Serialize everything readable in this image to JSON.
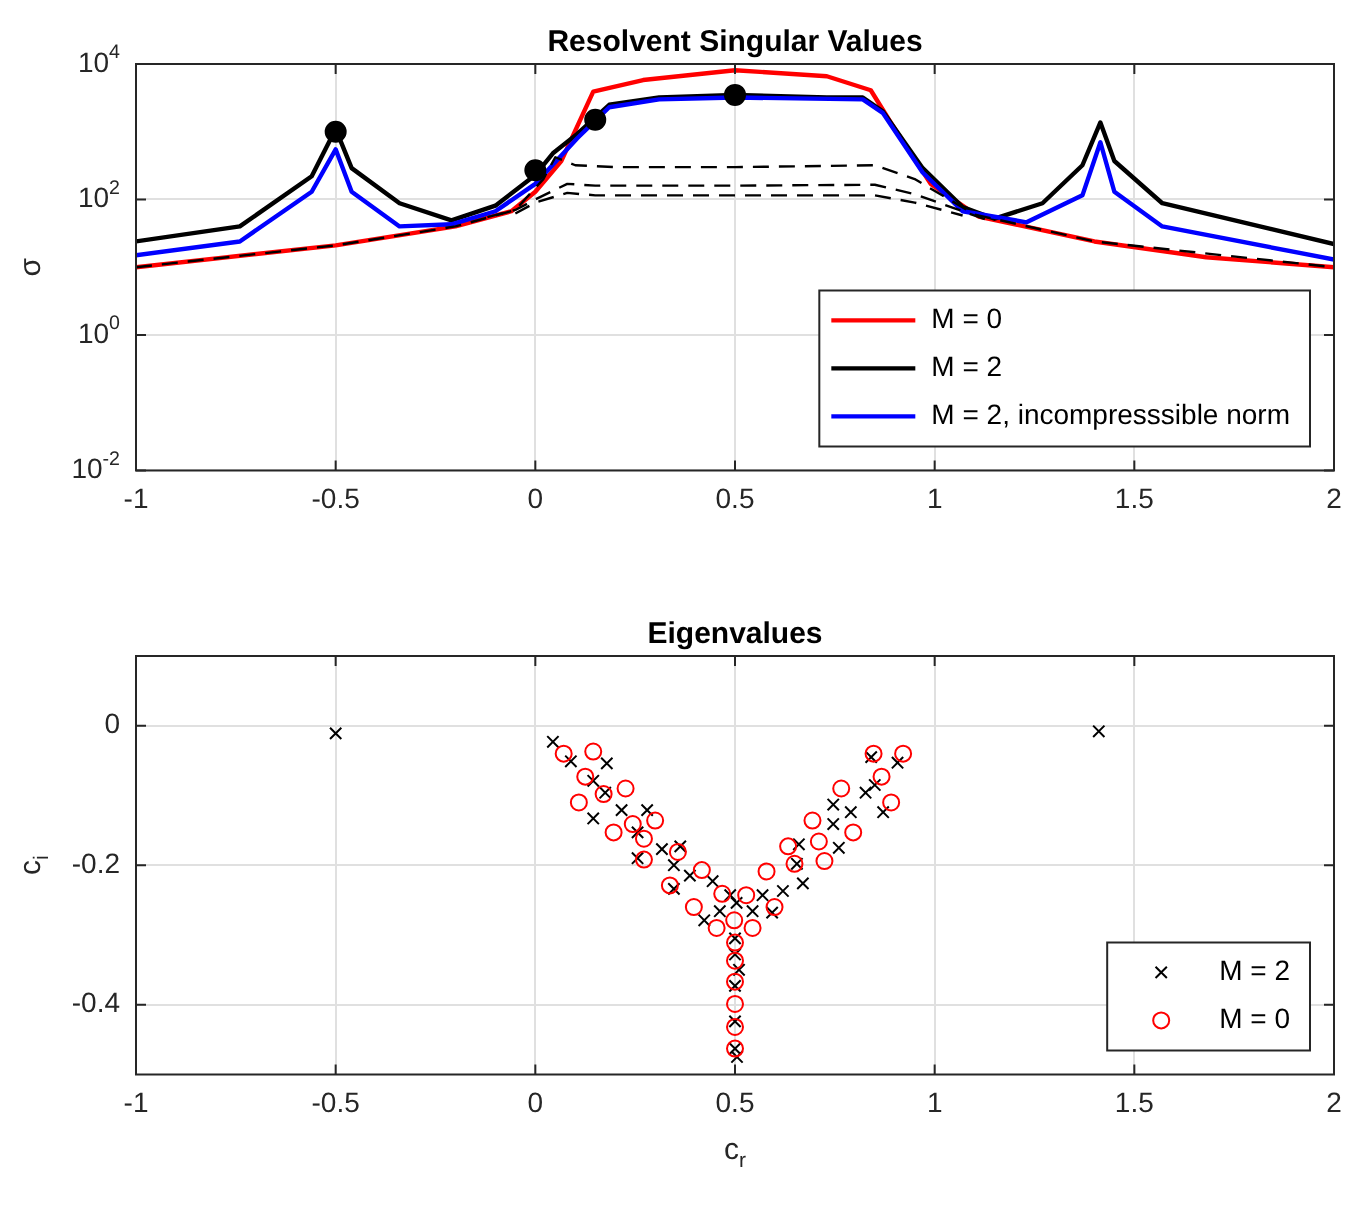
{
  "chart_data": [
    {
      "type": "line",
      "title": "Resolvent Singular Values",
      "ylabel": "σ",
      "log": "y",
      "xlim": [
        -1,
        2
      ],
      "xticks": [
        -1,
        -0.5,
        0,
        0.5,
        1,
        1.5,
        2
      ],
      "ylim": [
        0.01,
        10000
      ],
      "yticks": [
        {
          "value": 0.01,
          "label": "10$^{-2}$"
        },
        {
          "value": 1,
          "label": "10$^{0}$"
        },
        {
          "value": 100,
          "label": "10$^{2}$"
        },
        {
          "value": 10000,
          "label": "10$^{4}$"
        }
      ],
      "grid": true,
      "legend": "bottom right",
      "series": [
        {
          "name": "M = 0",
          "color": "#ff0000",
          "x": [
            -1,
            -0.5,
            -0.2,
            -0.06,
            0,
            0.065,
            0.145,
            0.27,
            0.5,
            0.73,
            0.84,
            0.89,
            0.99,
            1.11,
            1.4,
            1.68,
            2
          ],
          "values": [
            10,
            21,
            40,
            67,
            130,
            370,
            3900,
            5800,
            8100,
            6600,
            4100,
            1370,
            170,
            56,
            24,
            14,
            10
          ]
        },
        {
          "name": "M = 2",
          "color": "#000000",
          "x": [
            -1,
            -0.74,
            -0.56,
            -0.5,
            -0.46,
            -0.34,
            -0.21,
            -0.1,
            0,
            0.044,
            0.105,
            0.185,
            0.31,
            0.5,
            0.73,
            0.82,
            0.87,
            0.97,
            1.07,
            1.15,
            1.27,
            1.37,
            1.415,
            1.45,
            1.57,
            2
          ],
          "values": [
            24,
            40,
            220,
            1100,
            290,
            88,
            49,
            81,
            230,
            480,
            930,
            2500,
            3200,
            3500,
            3200,
            3200,
            2000,
            290,
            77,
            52,
            88,
            320,
            1370,
            370,
            88,
            22
          ]
        },
        {
          "name": "M = 2, incompresssible norm",
          "color": "#0000ff",
          "x": [
            -1,
            -0.74,
            -0.56,
            -0.5,
            -0.46,
            -0.34,
            -0.21,
            -0.1,
            0,
            0.105,
            0.185,
            0.31,
            0.5,
            0.82,
            0.87,
            0.97,
            1.07,
            1.23,
            1.37,
            1.415,
            1.45,
            1.57,
            2
          ],
          "values": [
            15,
            24,
            130,
            550,
            130,
            40,
            43,
            67,
            170,
            800,
            2300,
            3000,
            3200,
            3000,
            1900,
            250,
            67,
            46,
            115,
            700,
            130,
            40,
            13
          ]
        },
        {
          "type": "line",
          "color": "#000000",
          "line_style": "dashed",
          "x": [
            -1,
            -0.5,
            -0.2,
            -0.05,
            0.02,
            0.05,
            0.1,
            0.2,
            0.5,
            0.85,
            0.95,
            1.1,
            1.4,
            2
          ],
          "values": [
            10,
            21,
            40,
            70,
            200,
            420,
            320,
            300,
            300,
            320,
            200,
            60,
            24,
            10
          ]
        },
        {
          "type": "line",
          "color": "#000000",
          "line_style": "dashed",
          "x": [
            -0.12,
            -0.05,
            0,
            0.08,
            0.15,
            0.5,
            0.85,
            0.95,
            1.13
          ],
          "values": [
            55,
            70,
            100,
            170,
            160,
            160,
            165,
            120,
            50
          ]
        },
        {
          "type": "line",
          "color": "#000000",
          "line_style": "dashed",
          "x": [
            -0.05,
            0,
            0.08,
            0.15,
            0.5,
            0.85,
            0.95,
            1.07
          ],
          "values": [
            62,
            90,
            125,
            115,
            115,
            115,
            90,
            58
          ]
        },
        {
          "type": "scatter",
          "color": "#000000",
          "marker": "circle",
          "x": [
            -0.5,
            0,
            0.15,
            0.5
          ],
          "values": [
            1000,
            270,
            1500,
            3500
          ]
        }
      ]
    },
    {
      "type": "scatter",
      "title": "Eigenvalues",
      "xlabel": "c$_{r}$",
      "ylabel": "c$_{i}$",
      "xlim": [
        -1,
        2
      ],
      "xticks": [
        -1,
        -0.5,
        0,
        0.5,
        1,
        1.5,
        2
      ],
      "ylim": [
        -0.5,
        0.1
      ],
      "yticks": [
        -0.4,
        -0.2,
        0
      ],
      "grid": true,
      "legend": "bottom right",
      "series": [
        {
          "name": "M = 2",
          "color": "#000000",
          "marker": "cross",
          "x": [
            -0.5,
            1.411,
            0.044,
            0.089,
            0.145,
            0.145,
            0.179,
            0.175,
            0.216,
            0.256,
            0.28,
            0.256,
            0.317,
            0.363,
            0.347,
            0.347,
            0.387,
            0.444,
            0.423,
            0.462,
            0.488,
            0.504,
            0.5,
            0.5,
            0.51,
            0.5,
            0.5,
            0.5,
            0.505,
            0.544,
            0.593,
            0.62,
            0.66,
            0.67,
            0.746,
            0.76,
            0.79,
            0.827,
            0.841,
            0.85,
            0.871,
            0.907,
            0.655,
            0.746,
            0.569
          ],
          "values": [
            -0.011,
            -0.008,
            -0.023,
            -0.051,
            -0.079,
            -0.133,
            -0.054,
            -0.096,
            -0.121,
            -0.153,
            -0.121,
            -0.19,
            -0.177,
            -0.173,
            -0.2,
            -0.234,
            -0.215,
            -0.223,
            -0.279,
            -0.266,
            -0.243,
            -0.254,
            -0.305,
            -0.328,
            -0.35,
            -0.373,
            -0.424,
            -0.463,
            -0.475,
            -0.266,
            -0.268,
            -0.237,
            -0.17,
            -0.226,
            -0.113,
            -0.175,
            -0.124,
            -0.096,
            -0.045,
            -0.085,
            -0.124,
            -0.053,
            -0.198,
            -0.141,
            -0.243
          ]
        },
        {
          "name": "M = 0",
          "color": "#ff0000",
          "marker": "circle",
          "x": [
            0.071,
            0.145,
            0.125,
            0.109,
            0.171,
            0.226,
            0.196,
            0.244,
            0.272,
            0.3,
            0.272,
            0.337,
            0.357,
            0.397,
            0.417,
            0.454,
            0.468,
            0.498,
            0.528,
            0.544,
            0.579,
            0.599,
            0.633,
            0.649,
            0.694,
            0.71,
            0.724,
            0.766,
            0.796,
            0.847,
            0.867,
            0.891,
            0.921,
            0.5,
            0.5,
            0.5,
            0.5,
            0.5,
            0.5
          ],
          "values": [
            -0.04,
            -0.037,
            -0.073,
            -0.11,
            -0.098,
            -0.09,
            -0.153,
            -0.141,
            -0.162,
            -0.136,
            -0.192,
            -0.229,
            -0.181,
            -0.26,
            -0.207,
            -0.29,
            -0.241,
            -0.279,
            -0.243,
            -0.29,
            -0.209,
            -0.26,
            -0.173,
            -0.198,
            -0.136,
            -0.166,
            -0.194,
            -0.09,
            -0.153,
            -0.04,
            -0.073,
            -0.11,
            -0.04,
            -0.311,
            -0.337,
            -0.367,
            -0.399,
            -0.432,
            -0.463
          ]
        }
      ]
    }
  ]
}
